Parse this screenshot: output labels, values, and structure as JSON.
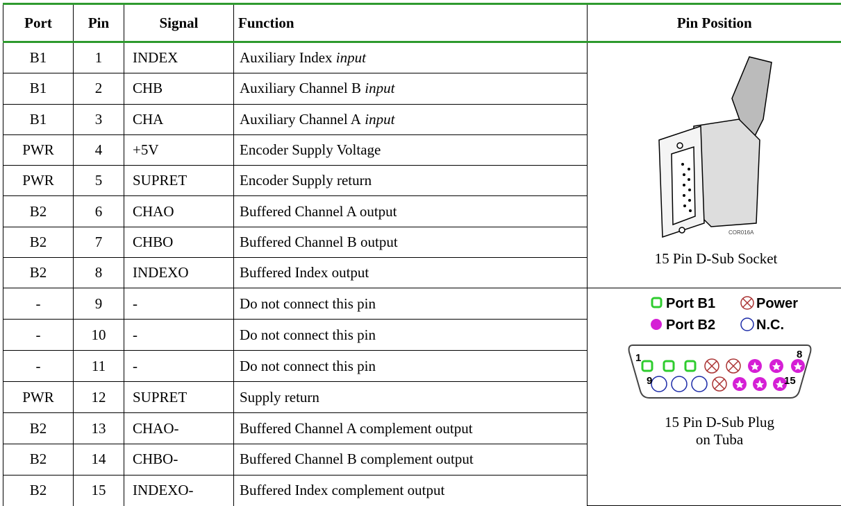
{
  "table": {
    "header": [
      "Port",
      "Pin",
      "Signal",
      "Function",
      "Pin Position"
    ],
    "rows": [
      {
        "port": "B1",
        "pin": "1",
        "signal": "INDEX",
        "function": "Auxiliary Index",
        "function_italic": "input"
      },
      {
        "port": "B1",
        "pin": "2",
        "signal": "CHB",
        "function": "Auxiliary Channel B",
        "function_italic": "input"
      },
      {
        "port": "B1",
        "pin": "3",
        "signal": "CHA",
        "function": "Auxiliary Channel A",
        "function_italic": "input"
      },
      {
        "port": "PWR",
        "pin": "4",
        "signal": "+5V",
        "function": "Encoder Supply Voltage"
      },
      {
        "port": "PWR",
        "pin": "5",
        "signal": "SUPRET",
        "function": "Encoder Supply return"
      },
      {
        "port": "B2",
        "pin": "6",
        "signal": "CHAO",
        "function": "Buffered Channel A output"
      },
      {
        "port": "B2",
        "pin": "7",
        "signal": "CHBO",
        "function": "Buffered Channel B output"
      },
      {
        "port": "B2",
        "pin": "8",
        "signal": "INDEXO",
        "function": "Buffered Index output"
      },
      {
        "port": "-",
        "pin": "9",
        "signal": "-",
        "function": "Do not connect this pin"
      },
      {
        "port": "-",
        "pin": "10",
        "signal": "-",
        "function": "Do not connect this pin"
      },
      {
        "port": "-",
        "pin": "11",
        "signal": "-",
        "function": "Do not connect this pin"
      },
      {
        "port": "PWR",
        "pin": "12",
        "signal": "SUPRET",
        "function": "Supply return"
      },
      {
        "port": "B2",
        "pin": "13",
        "signal": "CHAO-",
        "function": "Buffered Channel A complement output"
      },
      {
        "port": "B2",
        "pin": "14",
        "signal": "CHBO-",
        "function": "Buffered Channel B complement output"
      },
      {
        "port": "B2",
        "pin": "15",
        "signal": "INDEXO-",
        "function": "Buffered Index complement output"
      }
    ],
    "socket": {
      "image_label": "COR016A",
      "caption": "15 Pin D-Sub Socket"
    },
    "plug": {
      "legend": [
        "Port B1",
        "Power",
        "Port B2",
        "N.C."
      ],
      "pin_numbers": [
        "1",
        "8",
        "9",
        "15"
      ],
      "caption": [
        "15 Pin D-Sub Plug",
        "on Tuba"
      ]
    }
  }
}
